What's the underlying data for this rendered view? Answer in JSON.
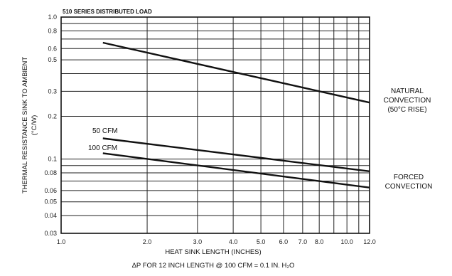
{
  "chart_data": {
    "type": "line",
    "title": "510 SERIES DISTRIBUTED LOAD",
    "xlabel": "HEAT SINK LENGTH (INCHES)",
    "ylabel_line1": "THERMAL RESISTANCE SINK TO AMBIENT",
    "ylabel_line2": "(°C/W)",
    "footnote": "ΔP FOR 12 INCH LENGTH @ 100 CFM = 0.1 IN. H₂O",
    "x_scale": "log",
    "y_scale": "log",
    "xlim": [
      1.0,
      12.0
    ],
    "ylim": [
      0.03,
      1.0
    ],
    "grid": true,
    "x_ticks": [
      {
        "value": 1.0,
        "label": "1.0"
      },
      {
        "value": 2.0,
        "label": "2.0"
      },
      {
        "value": 3.0,
        "label": "3.0"
      },
      {
        "value": 4.0,
        "label": "4.0"
      },
      {
        "value": 5.0,
        "label": "5.0"
      },
      {
        "value": 6.0,
        "label": "6.0"
      },
      {
        "value": 7.0,
        "label": "7.0"
      },
      {
        "value": 8.0,
        "label": "8.0"
      },
      {
        "value": 10.0,
        "label": "10.0"
      },
      {
        "value": 12.0,
        "label": "12.0"
      }
    ],
    "x_grid": [
      1,
      2,
      3,
      4,
      5,
      6,
      7,
      8,
      9,
      10,
      11,
      12
    ],
    "y_ticks": [
      {
        "value": 1.0,
        "label": "1.0"
      },
      {
        "value": 0.8,
        "label": "0.8"
      },
      {
        "value": 0.6,
        "label": "0.6"
      },
      {
        "value": 0.5,
        "label": "0.5"
      },
      {
        "value": 0.3,
        "label": "0.3"
      },
      {
        "value": 0.2,
        "label": "0.2"
      },
      {
        "value": 0.1,
        "label": "0.1"
      },
      {
        "value": 0.08,
        "label": "0.08"
      },
      {
        "value": 0.06,
        "label": "0.06"
      },
      {
        "value": 0.05,
        "label": "0.05"
      },
      {
        "value": 0.04,
        "label": "0.04"
      },
      {
        "value": 0.03,
        "label": "0.03"
      }
    ],
    "y_grid": [
      1.0,
      0.9,
      0.8,
      0.7,
      0.6,
      0.5,
      0.4,
      0.3,
      0.2,
      0.1,
      0.09,
      0.08,
      0.07,
      0.06,
      0.05,
      0.04,
      0.03
    ],
    "series": [
      {
        "name": "NATURAL CONVECTION (50°C RISE)",
        "x": [
          1.4,
          12.0
        ],
        "y": [
          0.66,
          0.25
        ]
      },
      {
        "name": "50 CFM",
        "x": [
          1.4,
          12.0
        ],
        "y": [
          0.14,
          0.082
        ]
      },
      {
        "name": "100 CFM",
        "x": [
          1.4,
          12.0
        ],
        "y": [
          0.11,
          0.063
        ]
      }
    ],
    "annotations": {
      "natural_lines": [
        "NATURAL",
        "CONVECTION",
        "(50°C RISE)"
      ],
      "forced_lines": [
        "FORCED",
        "CONVECTION"
      ],
      "cfm50": "50 CFM",
      "cfm100": "100 CFM"
    }
  }
}
